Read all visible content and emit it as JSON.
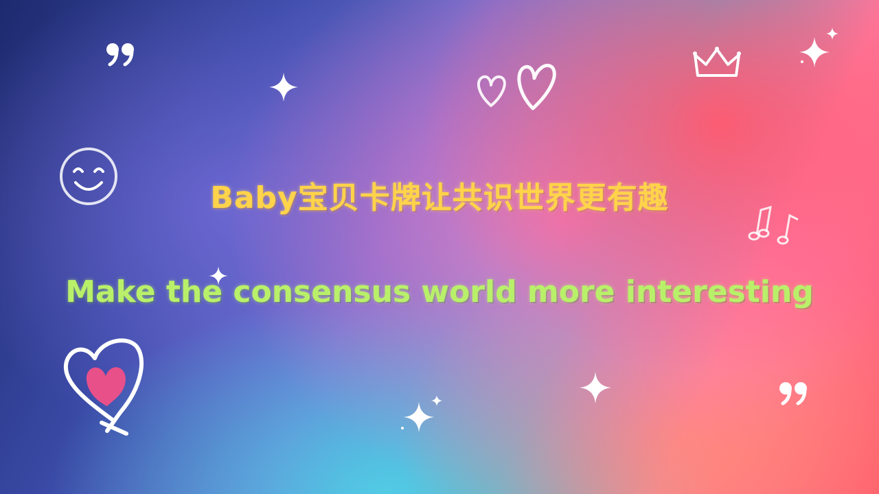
{
  "title": {
    "zh": "Baby宝贝卡牌让共识世界更有趣",
    "en": "Make the consensus world more interesting"
  },
  "colors": {
    "title_zh": "#ffd34a",
    "title_en": "#b9f06a",
    "decor": "#ffffff",
    "heart_fill": "#e8508a"
  },
  "decorations": [
    "quote-mark-icon",
    "sparkle-icon",
    "heart-doodle-icon",
    "crown-icon",
    "smiley-face-icon",
    "music-notes-icon",
    "heart-outline-icon"
  ]
}
